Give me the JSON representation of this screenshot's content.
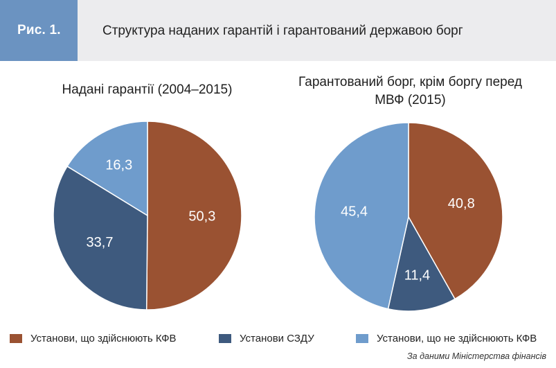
{
  "figure": {
    "label": "Рис. 1.",
    "title": "Структура наданих гарантій і гарантований державою борг"
  },
  "colors": {
    "header_bg": "#ececee",
    "tag_bg": "#6b93c1",
    "kfv": "#9a5232",
    "szdu": "#3e5a7e",
    "non_kfv": "#6f9ccc"
  },
  "chart_data": [
    {
      "type": "pie",
      "title": "Надані гарантії (2004–2015)",
      "categories": [
        "Установи, що здійснюють КФВ",
        "Установи СЗДУ",
        "Установи, що не здійснюють КФВ"
      ],
      "values": [
        50.3,
        33.7,
        16.3
      ],
      "labels": [
        "50,3",
        "33,7",
        "16,3"
      ]
    },
    {
      "type": "pie",
      "title": "Гарантований борг, крім боргу перед МВФ (2015)",
      "categories": [
        "Установи, що здійснюють КФВ",
        "Установи СЗДУ",
        "Установи, що не здійснюють КФВ"
      ],
      "values": [
        40.8,
        11.4,
        45.4
      ],
      "labels": [
        "40,8",
        "11,4",
        "45,4"
      ]
    }
  ],
  "legend": [
    {
      "label": "Установи, що здійснюють КФВ",
      "color": "#9a5232"
    },
    {
      "label": "Установи СЗДУ",
      "color": "#3e5a7e"
    },
    {
      "label": "Установи, що не здійснюють КФВ",
      "color": "#6f9ccc"
    }
  ],
  "source": "За даними Міністерства фінансів"
}
